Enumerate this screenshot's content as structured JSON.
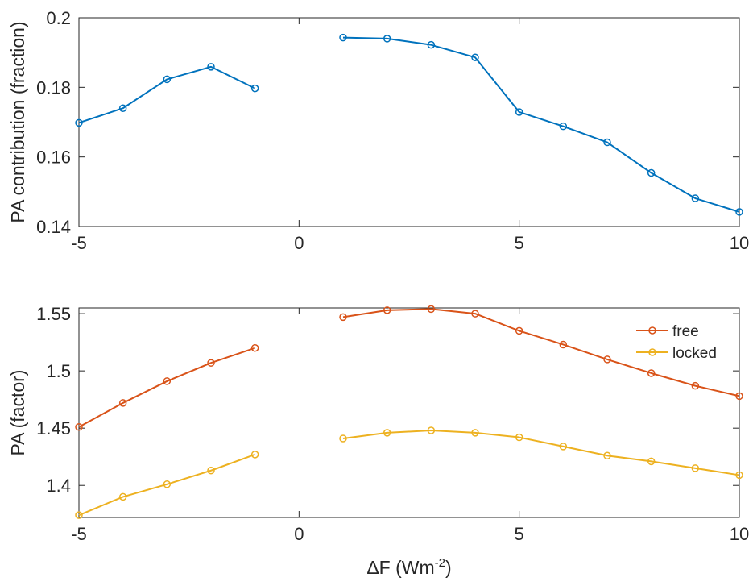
{
  "chart_data": [
    {
      "type": "line",
      "title": "",
      "xlabel": "",
      "ylabel": "PA contribution (fraction)",
      "xlim": [
        -5,
        10
      ],
      "ylim": [
        0.14,
        0.2
      ],
      "xticks": [
        -5,
        0,
        5,
        10
      ],
      "yticks": [
        0.14,
        0.16,
        0.18,
        0.2
      ],
      "xtick_labels": [
        "-5",
        "0",
        "5",
        "10"
      ],
      "ytick_labels": [
        "0.14",
        "0.16",
        "0.18",
        "0.2"
      ],
      "grid": false,
      "legend": null,
      "series": [
        {
          "color": "#0072BD",
          "marker": "circle",
          "segments": [
            {
              "x": [
                -5,
                -4,
                -3,
                -2,
                -1
              ],
              "y": [
                0.1698,
                0.174,
                0.1823,
                0.1859,
                0.1797
              ]
            },
            {
              "x": [
                1,
                2,
                3,
                4,
                5,
                6,
                7,
                8,
                9,
                10
              ],
              "y": [
                0.1943,
                0.194,
                0.1922,
                0.1886,
                0.1729,
                0.1688,
                0.1642,
                0.1554,
                0.1481,
                0.1442
              ]
            }
          ]
        }
      ]
    },
    {
      "type": "line",
      "title": "",
      "xlabel": "ΔF (Wm",
      "xlabel_sup": "-2",
      "xlabel_close": ")",
      "ylabel": "PA (factor)",
      "xlim": [
        -5,
        10
      ],
      "ylim": [
        1.372,
        1.555
      ],
      "xticks": [
        -5,
        0,
        5,
        10
      ],
      "yticks": [
        1.4,
        1.45,
        1.5,
        1.55
      ],
      "xtick_labels": [
        "-5",
        "0",
        "5",
        "10"
      ],
      "ytick_labels": [
        "1.4",
        "1.45",
        "1.5",
        "1.55"
      ],
      "grid": false,
      "legend": "top-right",
      "series": [
        {
          "name": "free",
          "color": "#D95319",
          "marker": "circle",
          "segments": [
            {
              "x": [
                -5,
                -4,
                -3,
                -2,
                -1
              ],
              "y": [
                1.451,
                1.472,
                1.491,
                1.507,
                1.52
              ]
            },
            {
              "x": [
                1,
                2,
                3,
                4,
                5,
                6,
                7,
                8,
                9,
                10
              ],
              "y": [
                1.547,
                1.553,
                1.554,
                1.55,
                1.535,
                1.523,
                1.51,
                1.498,
                1.487,
                1.478
              ]
            }
          ]
        },
        {
          "name": "locked",
          "color": "#EDB120",
          "marker": "circle",
          "segments": [
            {
              "x": [
                -5,
                -4,
                -3,
                -2,
                -1
              ],
              "y": [
                1.374,
                1.39,
                1.401,
                1.413,
                1.427
              ]
            },
            {
              "x": [
                1,
                2,
                3,
                4,
                5,
                6,
                7,
                8,
                9,
                10
              ],
              "y": [
                1.441,
                1.446,
                1.448,
                1.446,
                1.442,
                1.434,
                1.426,
                1.421,
                1.415,
                1.409
              ]
            }
          ]
        }
      ]
    }
  ]
}
